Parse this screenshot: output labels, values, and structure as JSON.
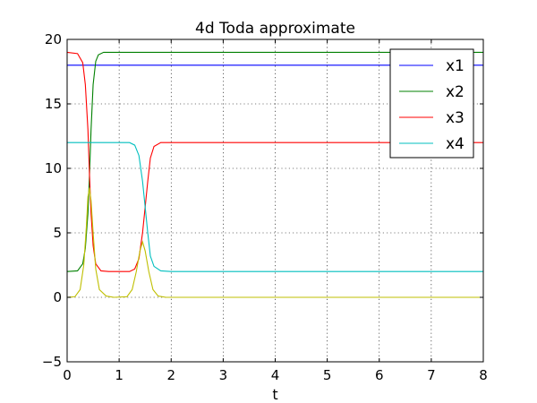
{
  "chart_data": {
    "type": "line",
    "title": "4d Toda approximate",
    "xlabel": "t",
    "ylabel": "",
    "xlim": [
      0,
      8
    ],
    "ylim": [
      -5,
      20
    ],
    "xticks": [
      "0",
      "1",
      "2",
      "3",
      "4",
      "5",
      "6",
      "7",
      "8"
    ],
    "yticks": [
      "−5",
      "0",
      "5",
      "10",
      "15",
      "20"
    ],
    "grid": true,
    "legend_position": "top-right",
    "series": [
      {
        "name": "x1",
        "color": "#0000ff",
        "points": [
          [
            0,
            18
          ],
          [
            8,
            18
          ]
        ]
      },
      {
        "name": "x2",
        "color": "#008000",
        "points": [
          [
            0,
            2
          ],
          [
            0.2,
            2.05
          ],
          [
            0.3,
            2.6
          ],
          [
            0.35,
            3.8
          ],
          [
            0.4,
            6.5
          ],
          [
            0.43,
            9.5
          ],
          [
            0.46,
            13
          ],
          [
            0.5,
            16.5
          ],
          [
            0.55,
            18.3
          ],
          [
            0.6,
            18.8
          ],
          [
            0.7,
            19
          ],
          [
            8,
            19
          ]
        ]
      },
      {
        "name": "x3",
        "color": "#ff0000",
        "points": [
          [
            0,
            19
          ],
          [
            0.2,
            18.9
          ],
          [
            0.3,
            18.2
          ],
          [
            0.35,
            16.5
          ],
          [
            0.4,
            13
          ],
          [
            0.43,
            9.5
          ],
          [
            0.46,
            6.5
          ],
          [
            0.5,
            4
          ],
          [
            0.55,
            2.6
          ],
          [
            0.65,
            2.05
          ],
          [
            0.8,
            2
          ],
          [
            1.2,
            2
          ],
          [
            1.3,
            2.2
          ],
          [
            1.38,
            3
          ],
          [
            1.45,
            5
          ],
          [
            1.5,
            7
          ],
          [
            1.55,
            9
          ],
          [
            1.6,
            10.8
          ],
          [
            1.67,
            11.7
          ],
          [
            1.8,
            12
          ],
          [
            8,
            12
          ]
        ]
      },
      {
        "name": "x4",
        "color": "#00bfbf",
        "points": [
          [
            0,
            12
          ],
          [
            1.2,
            12
          ],
          [
            1.3,
            11.8
          ],
          [
            1.38,
            11
          ],
          [
            1.45,
            9
          ],
          [
            1.5,
            7
          ],
          [
            1.55,
            5
          ],
          [
            1.6,
            3.2
          ],
          [
            1.67,
            2.4
          ],
          [
            1.8,
            2.05
          ],
          [
            2,
            2
          ],
          [
            8,
            2
          ]
        ]
      },
      {
        "color": "#bfbf00",
        "points": [
          [
            0,
            0
          ],
          [
            0.15,
            0.05
          ],
          [
            0.25,
            0.6
          ],
          [
            0.32,
            2.5
          ],
          [
            0.37,
            5.5
          ],
          [
            0.4,
            7.8
          ],
          [
            0.43,
            8.5
          ],
          [
            0.46,
            7.5
          ],
          [
            0.5,
            5
          ],
          [
            0.55,
            2.2
          ],
          [
            0.62,
            0.6
          ],
          [
            0.75,
            0.1
          ],
          [
            0.9,
            0
          ],
          [
            1.15,
            0.05
          ],
          [
            1.25,
            0.6
          ],
          [
            1.33,
            2
          ],
          [
            1.4,
            3.6
          ],
          [
            1.45,
            4.3
          ],
          [
            1.5,
            3.6
          ],
          [
            1.57,
            2
          ],
          [
            1.65,
            0.6
          ],
          [
            1.75,
            0.1
          ],
          [
            1.9,
            0
          ],
          [
            8,
            0
          ]
        ]
      }
    ],
    "legend": [
      "x1",
      "x2",
      "x3",
      "x4"
    ]
  }
}
